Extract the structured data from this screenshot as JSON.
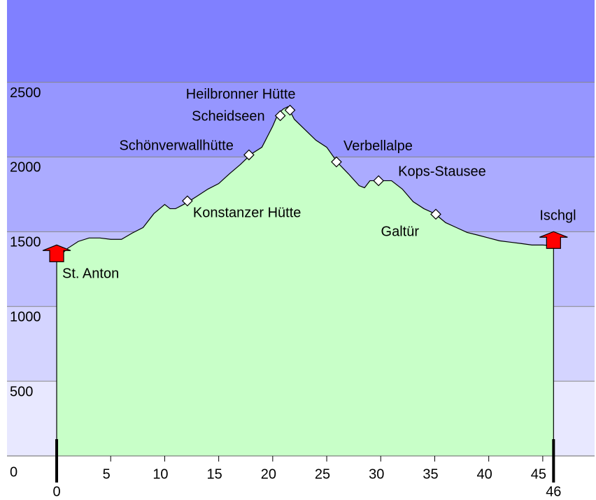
{
  "chart_data": {
    "type": "area",
    "x": [
      0,
      1,
      2,
      3,
      4,
      5,
      6,
      7,
      8,
      9,
      10,
      10.5,
      11,
      12,
      13,
      14,
      15,
      16,
      17,
      18,
      19,
      20,
      20.5,
      21,
      21.4,
      22,
      23,
      24,
      25,
      26,
      27,
      28,
      28.5,
      29,
      30,
      31,
      32,
      33,
      34,
      35,
      36,
      37,
      38,
      39,
      40,
      41,
      42,
      43,
      44,
      45,
      46
    ],
    "values": [
      1318,
      1388,
      1435,
      1458,
      1458,
      1449,
      1449,
      1491,
      1528,
      1621,
      1682,
      1654,
      1654,
      1692,
      1738,
      1785,
      1822,
      1888,
      1949,
      2019,
      2065,
      2206,
      2290,
      2322,
      2336,
      2252,
      2182,
      2112,
      2065,
      1963,
      1888,
      1808,
      1794,
      1841,
      1841,
      1841,
      1785,
      1701,
      1654,
      1621,
      1561,
      1528,
      1495,
      1477,
      1458,
      1439,
      1430,
      1421,
      1411,
      1411,
      1407
    ],
    "color": "#c8ffc8",
    "xlim": [
      -4.6,
      49.8
    ],
    "ylim": [
      0,
      3050
    ],
    "xticks": [
      5,
      10,
      15,
      20,
      25,
      30,
      35,
      40,
      45
    ],
    "end_ticks": [
      0,
      46
    ],
    "yticks": [
      0,
      500,
      1000,
      1500,
      2000,
      2500
    ],
    "band_colors": [
      "#e8e8ff",
      "#d4d4ff",
      "#bfbfff",
      "#ababff",
      "#9696ff",
      "#8080ff"
    ],
    "waypoints": [
      {
        "name": "St. Anton",
        "km": 0,
        "elevation": 1346,
        "marker": "house"
      },
      {
        "name": "Konstanzer Hütte",
        "km": 12.1,
        "elevation": 1706,
        "marker": "diamond"
      },
      {
        "name": "Schönverwallhütte",
        "km": 17.8,
        "elevation": 2014,
        "marker": "diamond"
      },
      {
        "name": "Scheidseen",
        "km": 20.7,
        "elevation": 2276,
        "marker": "diamond"
      },
      {
        "name": "Heilbronner Hütte",
        "km": 21.6,
        "elevation": 2313,
        "marker": "diamond"
      },
      {
        "name": "Verbellalpe",
        "km": 25.9,
        "elevation": 1967,
        "marker": "diamond"
      },
      {
        "name": "Kops-Stausee",
        "km": 29.8,
        "elevation": 1841,
        "marker": "diamond"
      },
      {
        "name": "Galtür",
        "km": 35.1,
        "elevation": 1617,
        "marker": "diamond"
      },
      {
        "name": "Ischgl",
        "km": 46,
        "elevation": 1435,
        "marker": "house"
      }
    ]
  }
}
